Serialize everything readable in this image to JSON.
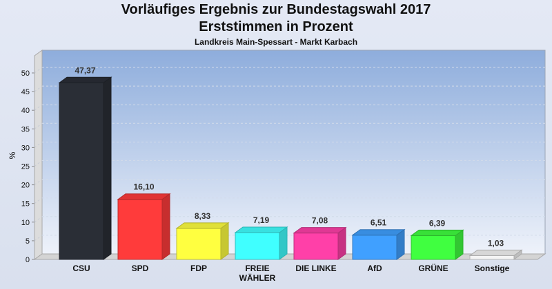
{
  "chart_data": {
    "type": "bar",
    "title": "Vorläufiges Ergebnis zur Bundestagswahl 2017",
    "subtitle": "Erststimmen in Prozent",
    "subsubtitle": "Landkreis Main-Spessart - Markt Karbach",
    "ylabel": "%",
    "xlabel": "",
    "ylim": [
      0,
      50
    ],
    "yticks": [
      0,
      5,
      10,
      15,
      20,
      25,
      30,
      35,
      40,
      45,
      50
    ],
    "grid": true,
    "categories": [
      [
        "CSU"
      ],
      [
        "SPD"
      ],
      [
        "FDP"
      ],
      [
        "FREIE",
        "WÄHLER"
      ],
      [
        "DIE LINKE"
      ],
      [
        "AfD"
      ],
      [
        "GRÜNE"
      ],
      [
        "Sonstige"
      ]
    ],
    "values": [
      47.37,
      16.1,
      8.33,
      7.19,
      7.08,
      6.51,
      6.39,
      1.03
    ],
    "labels": [
      "47,37",
      "16,10",
      "8,33",
      "7,19",
      "7,08",
      "6,51",
      "6,39",
      "1,03"
    ],
    "colors": [
      "#2a2e36",
      "#ff3b3b",
      "#ffff40",
      "#40ffff",
      "#ff40a8",
      "#40a0ff",
      "#40ff40",
      "#f4f4f4"
    ]
  }
}
